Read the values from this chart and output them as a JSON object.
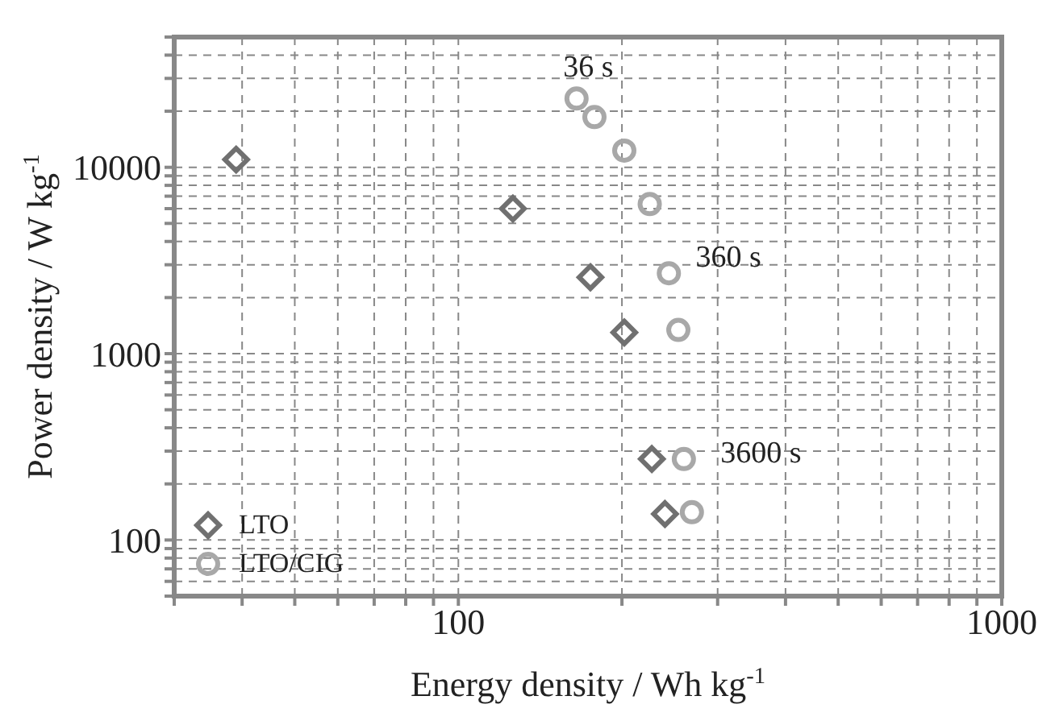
{
  "chart_data": {
    "type": "scatter",
    "xlabel": "Energy density / Wh kg$^{-1}$",
    "ylabel": "Power density / W kg$^{-1}$",
    "log": "xy",
    "grid": true,
    "legend": "bottom left",
    "xlim": [
      30,
      1000
    ],
    "xticks": [
      {
        "value": 30,
        "label": null
      },
      {
        "value": 40,
        "label": null
      },
      {
        "value": 50,
        "label": null
      },
      {
        "value": 60,
        "label": null
      },
      {
        "value": 70,
        "label": null
      },
      {
        "value": 80,
        "label": null
      },
      {
        "value": 90,
        "label": null
      },
      100,
      {
        "value": 200,
        "label": null
      },
      {
        "value": 300,
        "label": null
      },
      {
        "value": 400,
        "label": null
      },
      {
        "value": 500,
        "label": null
      },
      {
        "value": 600,
        "label": null
      },
      {
        "value": 700,
        "label": null
      },
      {
        "value": 800,
        "label": null
      },
      {
        "value": 900,
        "label": null
      },
      1000
    ],
    "ylim": [
      50,
      50000
    ],
    "yticks": [
      {
        "value": 50,
        "label": null
      },
      {
        "value": 60,
        "label": null
      },
      {
        "value": 70,
        "label": null
      },
      {
        "value": 80,
        "label": null
      },
      {
        "value": 90,
        "label": null
      },
      100,
      {
        "value": 200,
        "label": null
      },
      {
        "value": 300,
        "label": null
      },
      {
        "value": 400,
        "label": null
      },
      {
        "value": 500,
        "label": null
      },
      {
        "value": 600,
        "label": null
      },
      {
        "value": 700,
        "label": null
      },
      {
        "value": 800,
        "label": null
      },
      {
        "value": 900,
        "label": null
      },
      1000,
      {
        "value": 2000,
        "label": null
      },
      {
        "value": 3000,
        "label": null
      },
      {
        "value": 4000,
        "label": null
      },
      {
        "value": 5000,
        "label": null
      },
      {
        "value": 6000,
        "label": null
      },
      {
        "value": 7000,
        "label": null
      },
      {
        "value": 8000,
        "label": null
      },
      {
        "value": 9000,
        "label": null
      },
      10000,
      {
        "value": 20000,
        "label": null
      },
      {
        "value": 30000,
        "label": null
      },
      {
        "value": 40000,
        "label": null
      },
      {
        "value": 50000,
        "label": null
      }
    ],
    "series": [
      {
        "name": "LTO",
        "color": "#707070",
        "marker": "diamond",
        "x": [
          39,
          126,
          175,
          202,
          227,
          240
        ],
        "values": [
          11000,
          6000,
          2570,
          1300,
          272,
          138
        ]
      },
      {
        "name": "LTO/CIG",
        "color": "#a8a8a8",
        "marker": "circle",
        "x": [
          165,
          178,
          202,
          225,
          244,
          254,
          260,
          269
        ],
        "values": [
          23400,
          18600,
          12300,
          6350,
          2700,
          1340,
          272,
          141
        ]
      }
    ],
    "annotations": [
      "36 s",
      "360 s",
      "3600 s"
    ]
  }
}
